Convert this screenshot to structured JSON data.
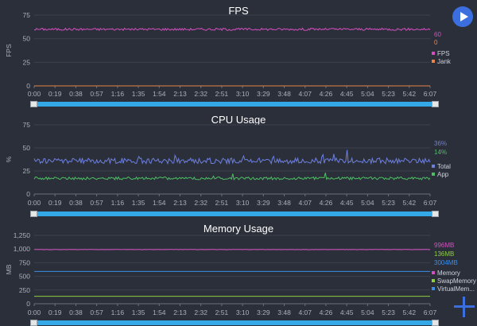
{
  "controls": {
    "play_icon": "play-icon",
    "add_icon": "plus-icon"
  },
  "time_ticks": [
    "0:00",
    "0:19",
    "0:38",
    "0:57",
    "1:16",
    "1:35",
    "1:54",
    "2:13",
    "2:32",
    "2:51",
    "3:10",
    "3:29",
    "3:48",
    "4:07",
    "4:26",
    "4:45",
    "5:04",
    "5:23",
    "5:42",
    "6:07"
  ],
  "chart_data": [
    {
      "type": "line",
      "title": "FPS",
      "ylabel": "FPS",
      "ylim": [
        0,
        75
      ],
      "yticks": [
        "0",
        "25",
        "50",
        "75"
      ],
      "current_values": [
        "60",
        "0"
      ],
      "series": [
        {
          "name": "FPS",
          "color": "#d44fbf",
          "base": 60,
          "noise": 1.2,
          "spike": 0
        },
        {
          "name": "Jank",
          "color": "#e8834a",
          "base": 0,
          "noise": 0,
          "spike": 0
        }
      ],
      "legend_placement": "right"
    },
    {
      "type": "line",
      "title": "CPU Usage",
      "ylabel": "%",
      "ylim": [
        0,
        75
      ],
      "yticks": [
        "0",
        "25",
        "50",
        "75"
      ],
      "current_values": [
        "36%",
        "14%"
      ],
      "series": [
        {
          "name": "Total",
          "color": "#6d7fe0",
          "base": 36,
          "noise": 3,
          "spike": 10
        },
        {
          "name": "App",
          "color": "#4cbf62",
          "base": 17,
          "noise": 1.5,
          "spike": 5
        }
      ],
      "legend_placement": "right"
    },
    {
      "type": "line",
      "title": "Memory Usage",
      "ylabel": "MB",
      "ylim": [
        0,
        1250
      ],
      "yticks": [
        "0",
        "250",
        "500",
        "750",
        "1,000",
        "1,250"
      ],
      "current_values": [
        "996MB",
        "136MB",
        "3004MB"
      ],
      "series": [
        {
          "name": "Memory",
          "color": "#d44fbf",
          "base": 990,
          "noise": 3,
          "spike": 0
        },
        {
          "name": "SwapMemory",
          "color": "#8fcf3f",
          "base": 136,
          "noise": 0,
          "spike": 0
        },
        {
          "name": "VirtualMem...",
          "color": "#3a8ee8",
          "base": 590,
          "noise": 0,
          "spike": 0
        }
      ],
      "legend_placement": "right"
    }
  ]
}
